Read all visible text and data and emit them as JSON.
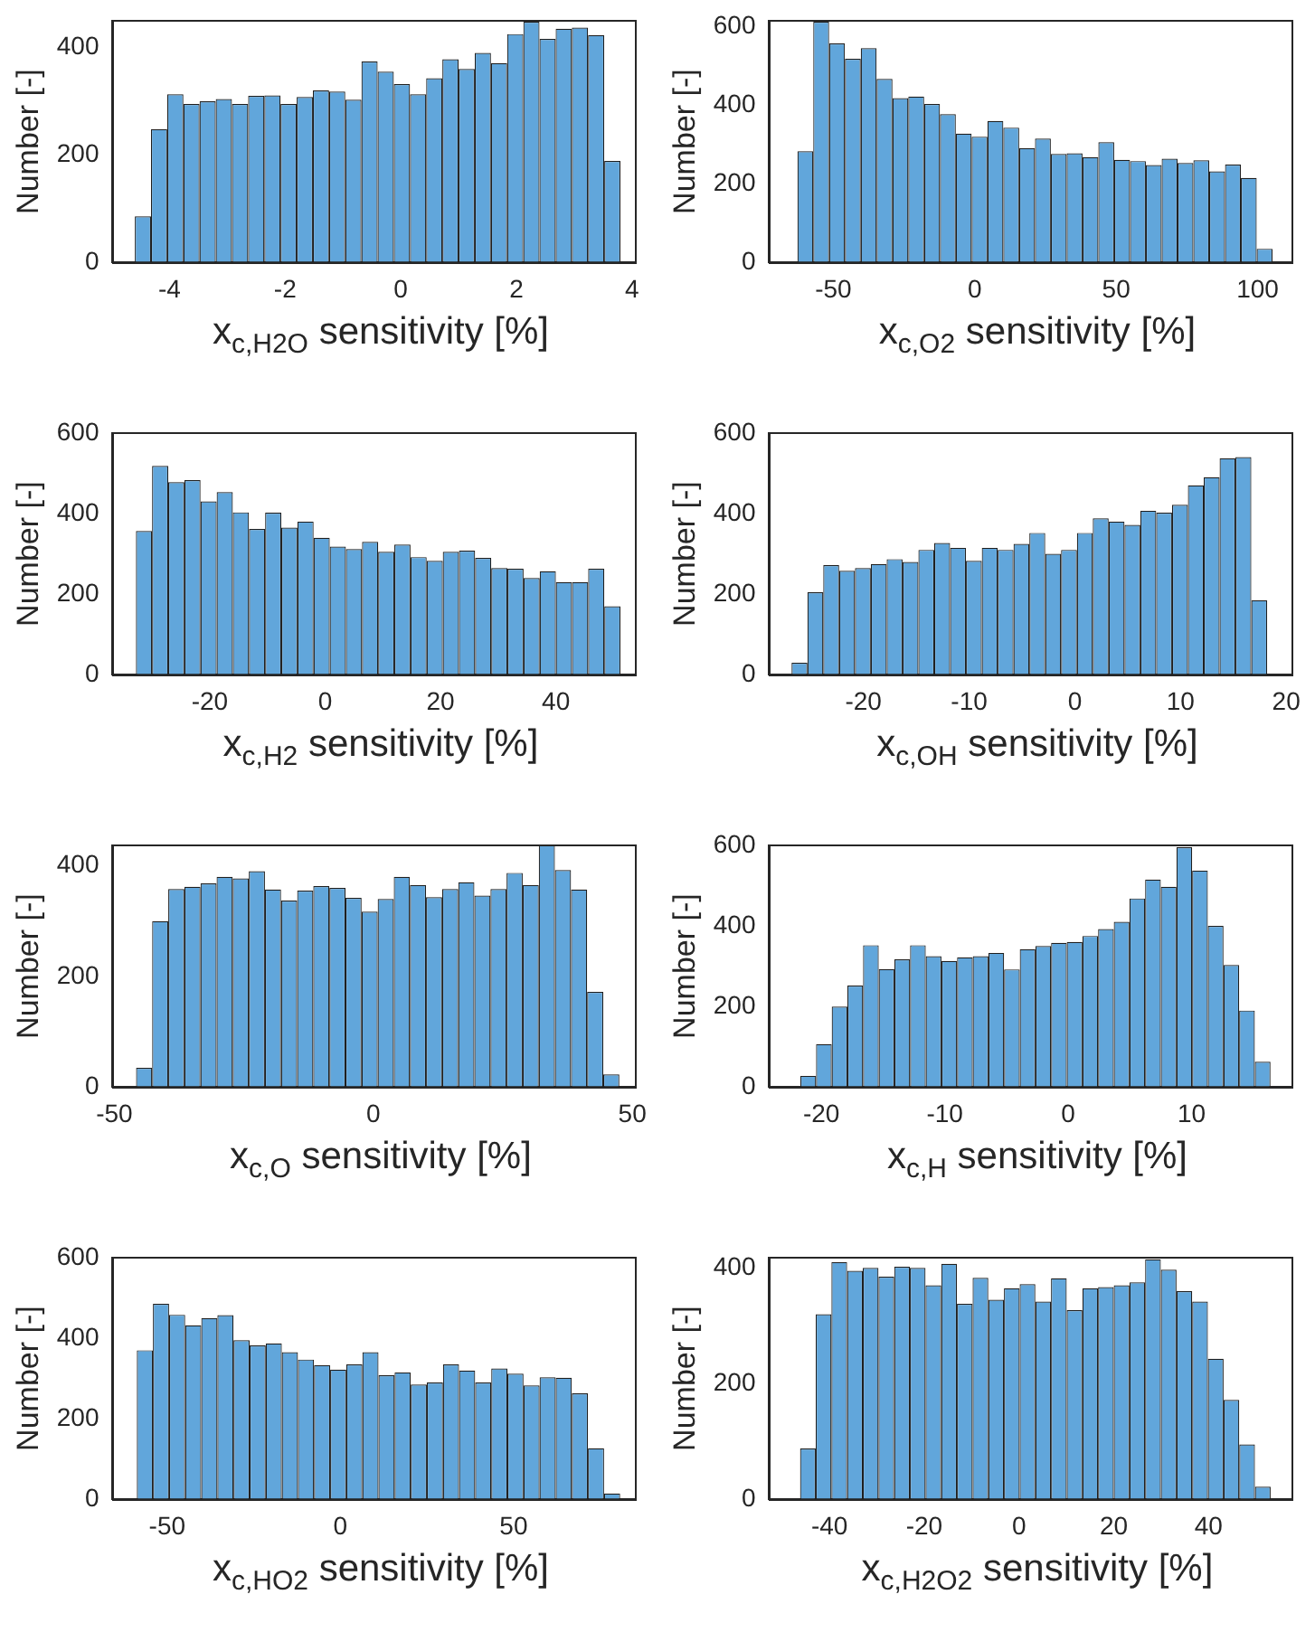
{
  "chart_data": [
    {
      "type": "histogram",
      "xlabel": "x$_{c,H2O}$ sensitivity [%]",
      "ylabel": "Number [-]",
      "color": "#61a6db",
      "xlim": [
        -5,
        4.05
      ],
      "xticks": [
        -4,
        -2,
        0,
        2,
        4
      ],
      "ylim": [
        0,
        450
      ],
      "yticks": [
        0,
        200,
        400
      ],
      "bins": [
        -4.6,
        -4.32,
        -4.04,
        -3.76,
        -3.48,
        -3.2,
        -2.92,
        -2.64,
        -2.36,
        -2.08,
        -1.8,
        -1.52,
        -1.24,
        -0.96,
        -0.68,
        -0.4,
        -0.12,
        0.16,
        0.44,
        0.72,
        1.0,
        1.28,
        1.56,
        1.84,
        2.12,
        2.4,
        2.68,
        2.96,
        3.24,
        3.52,
        3.8
      ],
      "values": [
        86,
        248,
        313,
        295,
        300,
        304,
        295,
        310,
        311,
        295,
        308,
        320,
        318,
        303,
        374,
        355,
        332,
        313,
        343,
        378,
        360,
        390,
        371,
        425,
        448,
        416,
        435,
        437,
        423,
        189
      ]
    },
    {
      "type": "histogram",
      "xlabel": "x$_{c,O2}$ sensitivity [%]",
      "ylabel": "Number [-]",
      "color": "#61a6db",
      "xlim": [
        -73,
        112
      ],
      "xticks": [
        -50,
        0,
        50,
        100
      ],
      "ylim": [
        0,
        615
      ],
      "yticks": [
        0,
        200,
        400,
        600
      ],
      "bins": [
        -62.7,
        -57.1,
        -51.5,
        -45.9,
        -40.3,
        -34.7,
        -29.1,
        -23.5,
        -17.9,
        -12.3,
        -6.7,
        -1.1,
        4.5,
        10.1,
        15.7,
        21.3,
        26.9,
        32.5,
        38.1,
        43.7,
        49.3,
        54.9,
        60.5,
        66.1,
        71.7,
        77.3,
        82.9,
        88.5,
        94.1,
        99.7,
        105.3
      ],
      "values": [
        283,
        612,
        557,
        518,
        545,
        467,
        418,
        422,
        403,
        377,
        328,
        320,
        360,
        343,
        291,
        315,
        276,
        278,
        268,
        306,
        261,
        258,
        248,
        264,
        253,
        260,
        232,
        249,
        215,
        35
      ]
    },
    {
      "type": "histogram",
      "xlabel": "x$_{c,H2}$ sensitivity [%]",
      "ylabel": "Number [-]",
      "color": "#61a6db",
      "xlim": [
        -37,
        53.7
      ],
      "xticks": [
        -20,
        0,
        20,
        40
      ],
      "ylim": [
        0,
        600
      ],
      "yticks": [
        0,
        200,
        400,
        600
      ],
      "bins": [
        -32.8,
        -30,
        -27.2,
        -24.4,
        -21.6,
        -18.8,
        -16,
        -13.2,
        -10.4,
        -7.6,
        -4.8,
        -2,
        0.8,
        3.6,
        6.4,
        9.2,
        12,
        14.8,
        17.6,
        20.4,
        23.2,
        26,
        28.8,
        31.6,
        34.4,
        37.2,
        40,
        42.8,
        45.6,
        48.4,
        51.2
      ],
      "values": [
        357,
        518,
        478,
        483,
        430,
        453,
        403,
        362,
        402,
        365,
        380,
        340,
        318,
        312,
        330,
        305,
        323,
        292,
        283,
        305,
        308,
        290,
        265,
        263,
        240,
        257,
        230,
        230,
        263,
        170
      ]
    },
    {
      "type": "histogram",
      "xlabel": "x$_{c,OH}$ sensitivity [%]",
      "ylabel": "Number [-]",
      "color": "#61a6db",
      "xlim": [
        -29,
        20.5
      ],
      "xticks": [
        -20,
        -10,
        0,
        10,
        20
      ],
      "ylim": [
        0,
        600
      ],
      "yticks": [
        0,
        200,
        400,
        600
      ],
      "bins": [
        -26.8,
        -25.3,
        -23.8,
        -22.3,
        -20.8,
        -19.3,
        -17.8,
        -16.3,
        -14.8,
        -13.3,
        -11.8,
        -10.3,
        -8.8,
        -7.3,
        -5.8,
        -4.3,
        -2.8,
        -1.3,
        0.2,
        1.7,
        3.2,
        4.7,
        6.2,
        7.7,
        9.2,
        10.7,
        12.2,
        13.7,
        15.2,
        16.7,
        18.2
      ],
      "values": [
        30,
        205,
        272,
        258,
        265,
        275,
        287,
        280,
        310,
        327,
        315,
        283,
        315,
        310,
        325,
        352,
        300,
        310,
        352,
        388,
        380,
        372,
        407,
        402,
        422,
        470,
        490,
        537,
        540,
        185
      ]
    },
    {
      "type": "histogram",
      "xlabel": "x$_{c,O}$ sensitivity [%]",
      "ylabel": "Number [-]",
      "color": "#61a6db",
      "xlim": [
        -50.5,
        50.5
      ],
      "xticks": [
        -50,
        0,
        50
      ],
      "ylim": [
        0,
        437
      ],
      "yticks": [
        0,
        200,
        400
      ],
      "bins": [
        -45.8,
        -42.69,
        -39.58,
        -36.47,
        -33.36,
        -30.25,
        -27.14,
        -24.03,
        -20.92,
        -17.81,
        -14.7,
        -11.59,
        -8.48,
        -5.37,
        -2.26,
        0.85,
        3.96,
        7.07,
        10.18,
        13.29,
        16.4,
        19.51,
        22.62,
        25.73,
        28.84,
        31.95,
        35.06,
        38.17,
        41.28,
        44.39,
        47.5
      ],
      "values": [
        35,
        300,
        358,
        362,
        368,
        380,
        377,
        390,
        357,
        337,
        355,
        363,
        360,
        342,
        317,
        340,
        380,
        365,
        343,
        358,
        370,
        346,
        358,
        387,
        365,
        437,
        392,
        357,
        172,
        23
      ]
    },
    {
      "type": "histogram",
      "xlabel": "x$_{c,H}$ sensitivity [%]",
      "ylabel": "Number [-]",
      "color": "#61a6db",
      "xlim": [
        -24.3,
        18.1
      ],
      "xticks": [
        -20,
        -10,
        0,
        10
      ],
      "ylim": [
        0,
        600
      ],
      "yticks": [
        0,
        200,
        400,
        600
      ],
      "bins": [
        -21.7,
        -20.43,
        -19.16,
        -17.89,
        -16.62,
        -15.35,
        -14.08,
        -12.81,
        -11.54,
        -10.27,
        -9,
        -7.73,
        -6.46,
        -5.19,
        -3.92,
        -2.65,
        -1.38,
        -0.11,
        1.16,
        2.43,
        3.7,
        4.97,
        6.24,
        7.51,
        8.78,
        10.05,
        11.32,
        12.59,
        13.86,
        15.13,
        16.4
      ],
      "values": [
        28,
        107,
        200,
        252,
        352,
        293,
        317,
        352,
        325,
        313,
        322,
        325,
        333,
        292,
        342,
        350,
        358,
        360,
        375,
        392,
        410,
        468,
        515,
        497,
        595,
        537,
        400,
        303,
        190,
        63
      ]
    },
    {
      "type": "histogram",
      "xlabel": "x$_{c,HO2}$ sensitivity [%]",
      "ylabel": "Number [-]",
      "color": "#61a6db",
      "xlim": [
        -66,
        85
      ],
      "xticks": [
        -50,
        0,
        50
      ],
      "ylim": [
        0,
        600
      ],
      "yticks": [
        0,
        200,
        400,
        600
      ],
      "bins": [
        -58.75,
        -54.1,
        -49.45,
        -44.8,
        -40.15,
        -35.5,
        -30.85,
        -26.2,
        -21.55,
        -16.9,
        -12.25,
        -7.6,
        -2.95,
        1.7,
        6.35,
        11,
        15.65,
        20.3,
        24.95,
        29.6,
        34.25,
        38.9,
        43.55,
        48.2,
        52.85,
        57.5,
        62.15,
        66.8,
        71.45,
        76.1,
        80.75
      ],
      "values": [
        370,
        485,
        458,
        432,
        450,
        457,
        395,
        382,
        387,
        365,
        347,
        333,
        322,
        335,
        365,
        308,
        315,
        285,
        290,
        335,
        320,
        290,
        325,
        312,
        283,
        303,
        302,
        263,
        127,
        15
      ]
    },
    {
      "type": "histogram",
      "xlabel": "x$_{c,H2O2}$ sensitivity [%]",
      "ylabel": "Number [-]",
      "color": "#61a6db",
      "xlim": [
        -52.9,
        57.5
      ],
      "xticks": [
        -40,
        -20,
        0,
        20,
        40
      ],
      "ylim": [
        0,
        418
      ],
      "yticks": [
        0,
        200,
        400
      ],
      "bins": [
        -46.2,
        -42.89,
        -39.58,
        -36.27,
        -32.96,
        -29.65,
        -26.34,
        -23.03,
        -19.72,
        -16.41,
        -13.1,
        -9.79,
        -6.48,
        -3.17,
        0.14,
        3.45,
        6.76,
        10.07,
        13.38,
        16.69,
        20,
        23.31,
        26.62,
        29.93,
        33.24,
        36.55,
        39.86,
        43.17,
        46.48,
        49.79,
        53.1
      ],
      "values": [
        88,
        320,
        410,
        395,
        400,
        385,
        402,
        400,
        370,
        407,
        338,
        383,
        345,
        365,
        372,
        342,
        382,
        327,
        365,
        367,
        370,
        375,
        415,
        397,
        360,
        342,
        243,
        172,
        95,
        22
      ]
    }
  ]
}
